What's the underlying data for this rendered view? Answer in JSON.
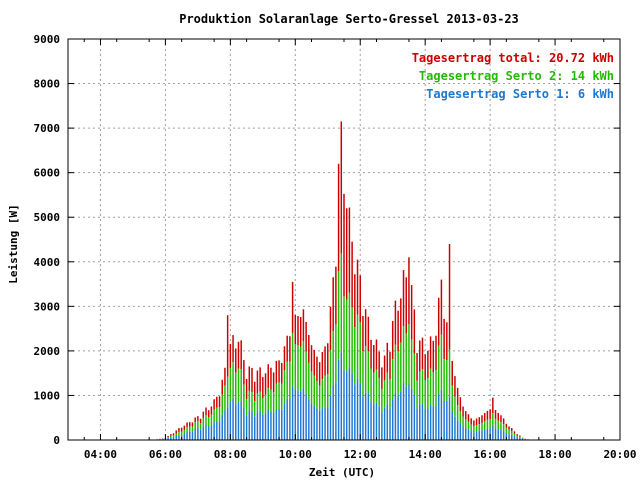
{
  "chart_data": {
    "type": "bar",
    "stacked": true,
    "title": "Produktion Solaranlage Serto-Gressel 2013-03-23",
    "xlabel": "Zeit (UTC)",
    "ylabel": "Leistung [W]",
    "ylim": [
      0,
      9000
    ],
    "yticks": [
      "0",
      "1000",
      "2000",
      "3000",
      "4000",
      "5000",
      "6000",
      "7000",
      "8000",
      "9000"
    ],
    "xlim_hours": [
      3,
      20
    ],
    "xticks": [
      {
        "hour": 4,
        "label": "04:00"
      },
      {
        "hour": 6,
        "label": "06:00"
      },
      {
        "hour": 8,
        "label": "08:00"
      },
      {
        "hour": 10,
        "label": "10:00"
      },
      {
        "hour": 12,
        "label": "12:00"
      },
      {
        "hour": 14,
        "label": "14:00"
      },
      {
        "hour": 16,
        "label": "16:00"
      },
      {
        "hour": 18,
        "label": "18:00"
      },
      {
        "hour": 20,
        "label": "20:00"
      }
    ],
    "grid": true,
    "legend_position": "top-right",
    "legend": [
      {
        "label": "Tagesertrag total: 20.72 kWh",
        "color": "#cc0000"
      },
      {
        "label": "Tagesertrag Serto 2: 14 kWh",
        "color": "#22bb00"
      },
      {
        "label": "Tagesertrag Serto 1: 6 kWh",
        "color": "#1f77d0"
      }
    ],
    "series_colors": {
      "serto1": "#1f77d0",
      "serto2": "#22bb00",
      "total": "#cc0000"
    },
    "profile_points": {
      "hours": [
        6.0,
        6.5,
        7.0,
        7.5,
        7.75,
        8.0,
        8.25,
        8.5,
        9.0,
        9.5,
        10.0,
        10.25,
        10.5,
        10.75,
        11.0,
        11.25,
        11.5,
        11.75,
        12.0,
        12.25,
        12.5,
        12.75,
        13.0,
        13.25,
        13.5,
        13.75,
        14.0,
        14.25,
        14.5,
        14.75,
        15.0,
        15.25,
        15.5,
        16.0,
        16.25,
        16.5,
        16.75,
        17.0,
        17.25
      ],
      "total": [
        50,
        300,
        500,
        800,
        1200,
        2000,
        2200,
        1500,
        1500,
        1800,
        3000,
        3300,
        2500,
        2000,
        2500,
        4500,
        6000,
        4500,
        3500,
        2500,
        2000,
        1700,
        2500,
        3200,
        3600,
        2200,
        2000,
        2200,
        3500,
        2300,
        1200,
        700,
        500,
        800,
        700,
        400,
        200,
        50,
        0
      ],
      "serto2": [
        40,
        200,
        400,
        600,
        900,
        1500,
        1600,
        1000,
        1000,
        1300,
        2300,
        2500,
        1800,
        1400,
        1700,
        3000,
        3500,
        3000,
        2500,
        1800,
        1400,
        1200,
        1700,
        2200,
        2300,
        1500,
        1400,
        1500,
        2300,
        1600,
        800,
        500,
        350,
        550,
        500,
        300,
        150,
        40,
        0
      ],
      "serto1": [
        30,
        120,
        250,
        350,
        500,
        800,
        850,
        600,
        600,
        700,
        1200,
        1300,
        950,
        750,
        850,
        1500,
        1700,
        1500,
        1200,
        950,
        750,
        650,
        850,
        1100,
        1150,
        800,
        700,
        750,
        1100,
        800,
        450,
        300,
        200,
        300,
        280,
        170,
        90,
        25,
        0
      ]
    },
    "peaks": [
      {
        "hour": 7.9,
        "total": 2800
      },
      {
        "hour": 9.95,
        "total": 3550
      },
      {
        "hour": 11.4,
        "total": 7150
      },
      {
        "hour": 11.3,
        "total": 6200
      },
      {
        "hour": 11.55,
        "total": 5200
      },
      {
        "hour": 13.5,
        "total": 4100
      },
      {
        "hour": 14.75,
        "total": 4400
      },
      {
        "hour": 16.1,
        "total": 950
      }
    ]
  }
}
